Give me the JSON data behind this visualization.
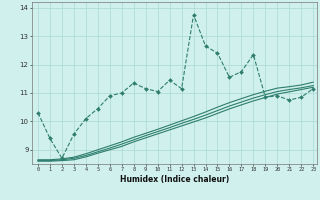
{
  "title": "",
  "xlabel": "Humidex (Indice chaleur)",
  "ylabel": "",
  "bg_color": "#cff0ec",
  "grid_color": "#aad8d4",
  "line_color": "#2e7d6e",
  "xmin": -0.5,
  "xmax": 23.3,
  "ymin": 8.5,
  "ymax": 14.2,
  "x_ticks": [
    0,
    1,
    2,
    3,
    4,
    5,
    6,
    7,
    8,
    9,
    10,
    11,
    12,
    13,
    14,
    15,
    16,
    17,
    18,
    19,
    20,
    21,
    22,
    23
  ],
  "y_ticks": [
    9,
    10,
    11,
    12,
    13,
    14
  ],
  "series1_x": [
    0,
    1,
    2,
    3,
    4,
    5,
    6,
    7,
    8,
    9,
    10,
    11,
    12,
    13,
    14,
    15,
    16,
    17,
    18,
    19,
    20,
    21,
    22,
    23
  ],
  "series1_y": [
    10.3,
    9.4,
    8.7,
    9.55,
    10.1,
    10.45,
    10.9,
    11.0,
    11.35,
    11.15,
    11.05,
    11.45,
    11.15,
    13.75,
    12.65,
    12.4,
    11.55,
    11.75,
    12.35,
    10.85,
    10.9,
    10.75,
    10.85,
    11.15
  ],
  "series2_x": [
    0,
    1,
    2,
    3,
    4,
    5,
    6,
    7,
    8,
    9,
    10,
    11,
    12,
    13,
    14,
    15,
    16,
    17,
    18,
    19,
    20,
    21,
    22,
    23
  ],
  "series2_y": [
    8.6,
    8.6,
    8.62,
    8.65,
    8.75,
    8.88,
    9.0,
    9.12,
    9.28,
    9.42,
    9.56,
    9.7,
    9.84,
    9.98,
    10.12,
    10.28,
    10.44,
    10.58,
    10.72,
    10.84,
    10.96,
    11.04,
    11.12,
    11.2
  ],
  "series3_x": [
    0,
    1,
    2,
    3,
    4,
    5,
    6,
    7,
    8,
    9,
    10,
    11,
    12,
    13,
    14,
    15,
    16,
    17,
    18,
    19,
    20,
    21,
    22,
    23
  ],
  "series3_y": [
    8.62,
    8.62,
    8.65,
    8.7,
    8.8,
    8.93,
    9.06,
    9.2,
    9.35,
    9.5,
    9.64,
    9.78,
    9.93,
    10.07,
    10.22,
    10.38,
    10.54,
    10.68,
    10.82,
    10.94,
    11.05,
    11.12,
    11.18,
    11.26
  ],
  "series4_x": [
    0,
    1,
    2,
    3,
    4,
    5,
    6,
    7,
    8,
    9,
    10,
    11,
    12,
    13,
    14,
    15,
    16,
    17,
    18,
    19,
    20,
    21,
    22,
    23
  ],
  "series4_y": [
    8.65,
    8.65,
    8.68,
    8.74,
    8.86,
    9.0,
    9.14,
    9.28,
    9.44,
    9.58,
    9.72,
    9.87,
    10.02,
    10.17,
    10.33,
    10.5,
    10.66,
    10.8,
    10.94,
    11.06,
    11.17,
    11.22,
    11.28,
    11.38
  ]
}
